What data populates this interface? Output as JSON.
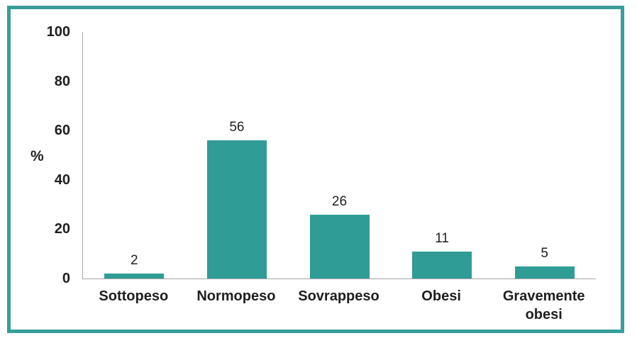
{
  "chart_data": {
    "type": "bar",
    "categories": [
      "Sottopeso",
      "Normopeso",
      "Sovrappeso",
      "Obesi",
      "Gravemente obesi"
    ],
    "values": [
      2,
      56,
      26,
      11,
      5
    ],
    "title": "",
    "xlabel": "",
    "ylabel": "%",
    "ylim": [
      0,
      100
    ],
    "yticks": [
      0,
      20,
      40,
      60,
      80,
      100
    ],
    "grid": "off",
    "legend": "none",
    "bar_color": "#2f9c96",
    "axis_line_color": "#a6a6a6",
    "text_color": "#1f1f1f"
  },
  "frame": {
    "border_color": "#379e9a",
    "background": "#ffffff"
  }
}
